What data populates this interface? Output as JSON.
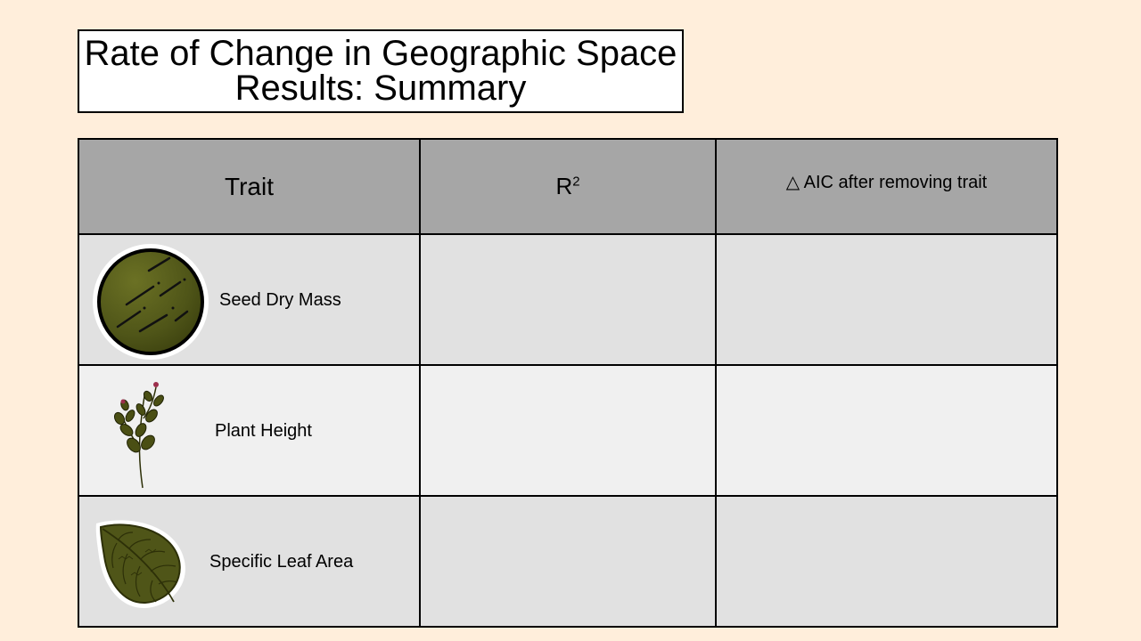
{
  "title": {
    "line1": "Rate of Change in Geographic Space",
    "line2": "Results: Summary"
  },
  "table": {
    "headers": {
      "trait": "Trait",
      "r2_base": "R",
      "r2_sup": "2",
      "aic_symbol": "△",
      "aic_text": "AIC after removing trait"
    },
    "rows": [
      {
        "label": "Seed Dry Mass",
        "icon": "seed-icon",
        "r2": "",
        "aic": ""
      },
      {
        "label": "Plant Height",
        "icon": "plant-sprig-icon",
        "r2": "",
        "aic": ""
      },
      {
        "label": "Specific Leaf Area",
        "icon": "leaf-icon",
        "r2": "",
        "aic": ""
      }
    ]
  },
  "colors": {
    "background": "#ffeedb",
    "header_fill": "#a6a6a6",
    "row_odd": "#e1e1e1",
    "row_even": "#f0f0f0",
    "icon_olive": "#4f5518"
  }
}
